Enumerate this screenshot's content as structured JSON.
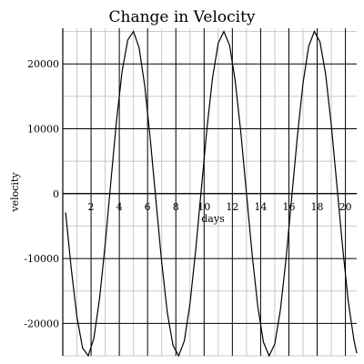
{
  "chart_data": {
    "type": "line",
    "title": "Change in Velocity",
    "xlabel": "days",
    "ylabel": "velocity",
    "xlim": [
      0,
      20.8
    ],
    "ylim": [
      -25000,
      25500
    ],
    "x_ticks": [
      2,
      4,
      6,
      8,
      10,
      12,
      14,
      16,
      18,
      20
    ],
    "y_ticks": [
      -20000,
      -10000,
      0,
      10000,
      20000
    ],
    "x_tick_labels": [
      "2",
      "4",
      "6",
      "8",
      "10",
      "12",
      "14",
      "16",
      "18",
      "20"
    ],
    "y_tick_labels": [
      "-20000",
      "-10000",
      "0",
      "10000",
      "20000"
    ],
    "grid": true,
    "series": [
      {
        "x": [
          0.2,
          0.6,
          1.0,
          1.4,
          1.8,
          2.2,
          2.6,
          3.0,
          3.4,
          3.8,
          4.2,
          4.6,
          5.0,
          5.4,
          5.8,
          6.2,
          6.6,
          7.0,
          7.4,
          7.8,
          8.2,
          8.6,
          9.0,
          9.4,
          9.8,
          10.2,
          10.6,
          11.0,
          11.4,
          11.8,
          12.2,
          12.6,
          13.0,
          13.4,
          13.8,
          14.2,
          14.6,
          15.0,
          15.4,
          15.8,
          16.2,
          16.6,
          17.0,
          17.4,
          17.8,
          18.2,
          18.6,
          19.0,
          19.4,
          19.8,
          20.2,
          20.6,
          20.8
        ],
        "y": [
          -2900,
          -11600,
          -19000,
          -23800,
          -25000,
          -22300,
          -16200,
          -7800,
          1800,
          11200,
          18900,
          23700,
          25000,
          22500,
          16600,
          8200,
          -1200,
          -10600,
          -18400,
          -23400,
          -25000,
          -22700,
          -17000,
          -8800,
          600,
          10000,
          17900,
          23200,
          25000,
          22900,
          17400,
          9400,
          0,
          -9400,
          -17400,
          -22900,
          -25000,
          -23200,
          -17900,
          -10000,
          -600,
          8800,
          17000,
          22700,
          25000,
          23400,
          18400,
          10600,
          1200,
          -8200,
          -16600,
          -22500,
          -24600
        ]
      }
    ]
  }
}
